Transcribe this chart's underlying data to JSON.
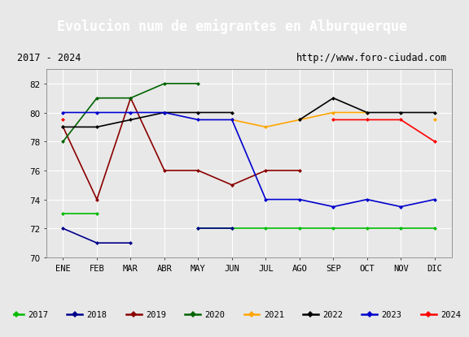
{
  "title": "Evolucion num de emigrantes en Alburquerque",
  "subtitle_left": "2017 - 2024",
  "subtitle_right": "http://www.foro-ciudad.com",
  "months": [
    "ENE",
    "FEB",
    "MAR",
    "ABR",
    "MAY",
    "JUN",
    "JUL",
    "AGO",
    "SEP",
    "OCT",
    "NOV",
    "DIC"
  ],
  "ylim": [
    70,
    83
  ],
  "yticks": [
    70,
    72,
    74,
    76,
    78,
    80,
    82
  ],
  "series": [
    {
      "year": "2017",
      "color": "#00BB00",
      "y": [
        73,
        73,
        null,
        null,
        72,
        72,
        72,
        72,
        72,
        72,
        72,
        72
      ]
    },
    {
      "year": "2018",
      "color": "#00008B",
      "y": [
        72,
        71,
        71,
        null,
        72,
        72,
        null,
        null,
        null,
        null,
        null,
        null
      ]
    },
    {
      "year": "2019",
      "color": "#8B0000",
      "y": [
        79,
        74,
        81,
        76,
        76,
        75,
        76,
        76,
        null,
        null,
        null,
        null
      ]
    },
    {
      "year": "2020",
      "color": "#006400",
      "y": [
        78,
        81,
        81,
        82,
        82,
        null,
        null,
        null,
        null,
        null,
        null,
        null
      ]
    },
    {
      "year": "2021",
      "color": "#FFA500",
      "y": [
        null,
        null,
        null,
        null,
        null,
        79.5,
        79,
        79.5,
        80,
        80,
        null,
        79.5
      ]
    },
    {
      "year": "2022",
      "color": "#000000",
      "y": [
        79,
        79,
        79.5,
        80,
        80,
        80,
        null,
        79.5,
        81,
        80,
        80,
        80
      ]
    },
    {
      "year": "2023",
      "color": "#0000CD",
      "y": [
        80,
        80,
        80,
        80,
        79.5,
        79.5,
        74,
        74,
        73.5,
        74,
        73.5,
        74
      ]
    },
    {
      "year": "2024",
      "color": "#FF0000",
      "y": [
        79.5,
        null,
        null,
        null,
        null,
        null,
        null,
        null,
        79.5,
        79.5,
        79.5,
        78
      ]
    }
  ],
  "title_bg_color": "#4C90D0",
  "title_color": "#FFFFFF",
  "title_fontsize": 12,
  "plot_bg_color": "#E8E8E8",
  "grid_color": "#FFFFFF",
  "subtitle_bg": "#F0F0F0",
  "legend_bg": "#FFFFFF"
}
